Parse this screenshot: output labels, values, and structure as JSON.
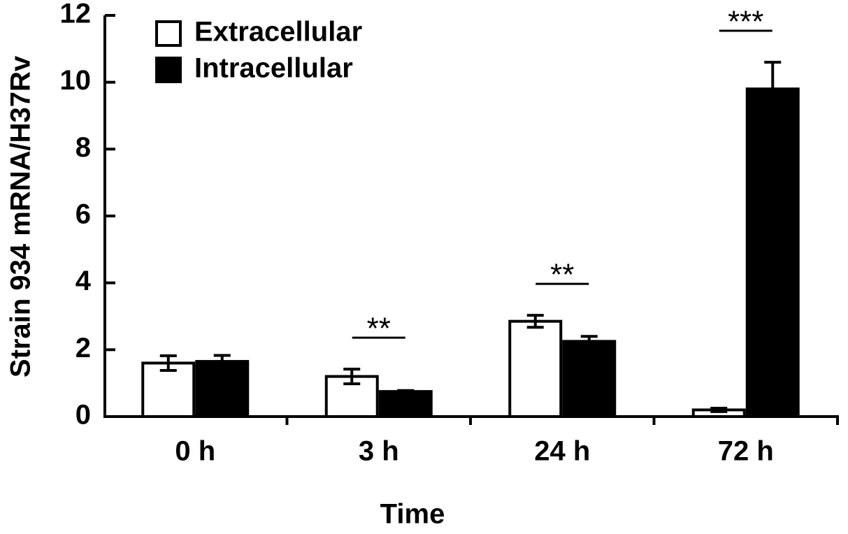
{
  "chart_data": {
    "type": "bar",
    "x_label": "Time",
    "y_label": "Strain 934 mRNA/H37Rv",
    "categories": [
      "0 h",
      "3 h",
      "24 h",
      "72 h"
    ],
    "series": [
      {
        "name": "Extracellular",
        "color": "#ffffff",
        "values": [
          1.6,
          1.2,
          2.85,
          0.2
        ],
        "errors": [
          0.22,
          0.22,
          0.18,
          0.05
        ]
      },
      {
        "name": "Intracellular",
        "color": "#000000",
        "values": [
          1.65,
          0.75,
          2.25,
          9.8
        ],
        "errors": [
          0.18,
          0.03,
          0.15,
          0.8
        ]
      }
    ],
    "ylim": [
      0,
      12
    ],
    "yticks": [
      0,
      2,
      4,
      6,
      8,
      10,
      12
    ],
    "annotations": [
      {
        "category": 1,
        "text": "**"
      },
      {
        "category": 2,
        "text": "**"
      },
      {
        "category": 3,
        "text": "***"
      }
    ]
  }
}
